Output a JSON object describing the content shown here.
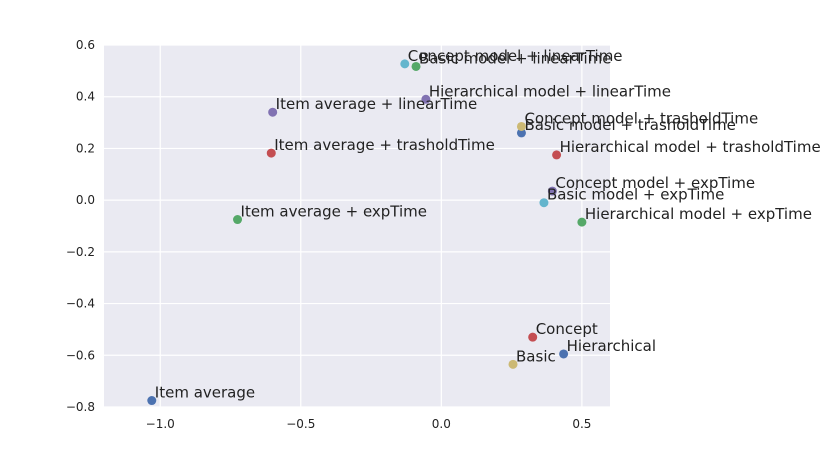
{
  "chart_data": {
    "type": "scatter",
    "title": "",
    "xlabel": "",
    "ylabel": "",
    "xlim": [
      -1.2,
      0.6
    ],
    "ylim": [
      -0.8,
      0.6
    ],
    "grid": true,
    "xticks": [
      -1.0,
      -0.5,
      0.0,
      0.5
    ],
    "xtick_labels": [
      "−1.0",
      "−0.5",
      "0.0",
      "0.5"
    ],
    "yticks": [
      -0.8,
      -0.6,
      -0.4,
      -0.2,
      0.0,
      0.2,
      0.4,
      0.6
    ],
    "ytick_labels": [
      "−0.8",
      "−0.6",
      "−0.4",
      "−0.2",
      "0.0",
      "0.2",
      "0.4",
      "0.6"
    ],
    "points": [
      {
        "label": "Item average",
        "x": -1.03,
        "y": -0.775,
        "color": "#4c72b0"
      },
      {
        "label": "Basic",
        "x": 0.255,
        "y": -0.635,
        "color": "#ccb974"
      },
      {
        "label": "Concept",
        "x": 0.325,
        "y": -0.53,
        "color": "#c44e52"
      },
      {
        "label": "Hierarchical",
        "x": 0.435,
        "y": -0.595,
        "color": "#4c72b0"
      },
      {
        "label": "Item average + expTime",
        "x": -0.725,
        "y": -0.075,
        "color": "#55a868"
      },
      {
        "label": "Basic model + expTime",
        "x": 0.365,
        "y": -0.01,
        "color": "#64b5cd"
      },
      {
        "label": "Concept model + expTime",
        "x": 0.395,
        "y": 0.035,
        "color": "#8172b2"
      },
      {
        "label": "Hierarchical model + expTime",
        "x": 0.5,
        "y": -0.085,
        "color": "#55a868"
      },
      {
        "label": "Item average + trasholdTime",
        "x": -0.605,
        "y": 0.182,
        "color": "#c44e52"
      },
      {
        "label": "Basic model + trasholdTime",
        "x": 0.285,
        "y": 0.26,
        "color": "#4c72b0"
      },
      {
        "label": "Concept model + trasholdTime",
        "x": 0.285,
        "y": 0.285,
        "color": "#ccb974"
      },
      {
        "label": "Hierarchical model + trasholdTime",
        "x": 0.41,
        "y": 0.175,
        "color": "#c44e52"
      },
      {
        "label": "Item average + linearTime",
        "x": -0.6,
        "y": 0.34,
        "color": "#8172b2"
      },
      {
        "label": "Basic model + linearTime",
        "x": -0.09,
        "y": 0.517,
        "color": "#55a868"
      },
      {
        "label": "Concept model + linearTime",
        "x": -0.13,
        "y": 0.527,
        "color": "#64b5cd"
      },
      {
        "label": "Hierarchical model + linearTime",
        "x": -0.055,
        "y": 0.39,
        "color": "#8172b2"
      }
    ]
  },
  "colors": {
    "plot_background": "#eaeaf2",
    "grid": "#ffffff",
    "text": "#222222"
  }
}
